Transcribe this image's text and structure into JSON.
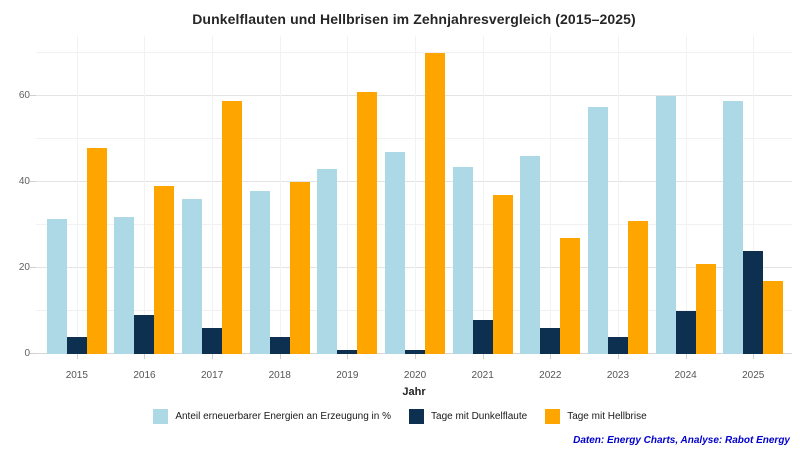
{
  "chart_data": {
    "type": "bar",
    "title": "Dunkelflauten und Hellbrisen im Zehnjahresvergleich (2015–2025)",
    "xlabel": "Jahr",
    "ylabel": "",
    "categories": [
      "2015",
      "2016",
      "2017",
      "2018",
      "2019",
      "2020",
      "2021",
      "2022",
      "2023",
      "2024",
      "2025"
    ],
    "series": [
      {
        "key": "anteil-erneuerbare-energien",
        "name": "Anteil erneuerbarer Energien an Erzeugung in %",
        "color": "#add8e6",
        "values": [
          31.5,
          32,
          36,
          38,
          43,
          47,
          43.5,
          46,
          57.5,
          60,
          59
        ]
      },
      {
        "key": "tage-mit-dunkelflaute",
        "name": "Tage mit Dunkelflaute",
        "color": "#0d3050",
        "values": [
          4,
          9,
          6,
          4,
          1,
          1,
          8,
          6,
          4,
          10,
          24
        ]
      },
      {
        "key": "tage-mit-hellbrise",
        "name": "Tage mit Hellbrise",
        "color": "#ffa500",
        "values": [
          48,
          39,
          59,
          40,
          61,
          70,
          37,
          27,
          31,
          21,
          17
        ]
      }
    ],
    "ylim": [
      0,
      74
    ],
    "yticks": [
      0,
      20,
      40,
      60
    ],
    "ygrid": [
      10,
      20,
      30,
      40,
      50,
      60,
      70
    ],
    "grid": true,
    "legend_position": "bottom"
  },
  "attribution": {
    "text": "Daten: Energy Charts, Analyse: Rabot Energy",
    "color": "#0000cc"
  },
  "colors": {
    "background": "#ffffff",
    "title": "#262626",
    "tick_label": "#606060",
    "gridline_major": "#e4e4e4",
    "gridline_minor": "#f1f1f1",
    "baseline": "#d6d6d6"
  }
}
